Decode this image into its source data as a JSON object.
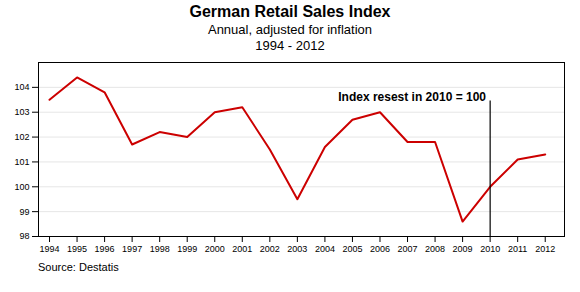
{
  "chart_data": {
    "type": "line",
    "title": "German Retail Sales Index",
    "subtitle": [
      "Annual, adjusted for inflation",
      "1994 - 2012"
    ],
    "source": "Source: Destatis",
    "annotations": [
      {
        "text": "Index resest in 2010 = 100",
        "x": 2009.85,
        "y": 103.45
      }
    ],
    "vlines": [
      2010
    ],
    "x": [
      1994,
      1995,
      1996,
      1997,
      1998,
      1999,
      2000,
      2001,
      2002,
      2003,
      2004,
      2005,
      2006,
      2007,
      2008,
      2009,
      2010,
      2011,
      2012
    ],
    "values": [
      103.5,
      104.4,
      103.8,
      101.7,
      102.2,
      102.0,
      103.0,
      103.2,
      101.5,
      99.5,
      101.6,
      102.7,
      103.0,
      101.8,
      101.8,
      98.6,
      100.0,
      101.1,
      101.3
    ],
    "color": "#cc0000",
    "xlim": [
      1993.6,
      2012.7
    ],
    "xticks": [
      1994,
      1995,
      1996,
      1997,
      1998,
      1999,
      2000,
      2001,
      2002,
      2003,
      2004,
      2005,
      2006,
      2007,
      2008,
      2009,
      2010,
      2011,
      2012
    ],
    "ylim": [
      98,
      105
    ],
    "yticks": [
      98,
      99,
      100,
      101,
      102,
      103,
      104
    ],
    "grid": true
  }
}
